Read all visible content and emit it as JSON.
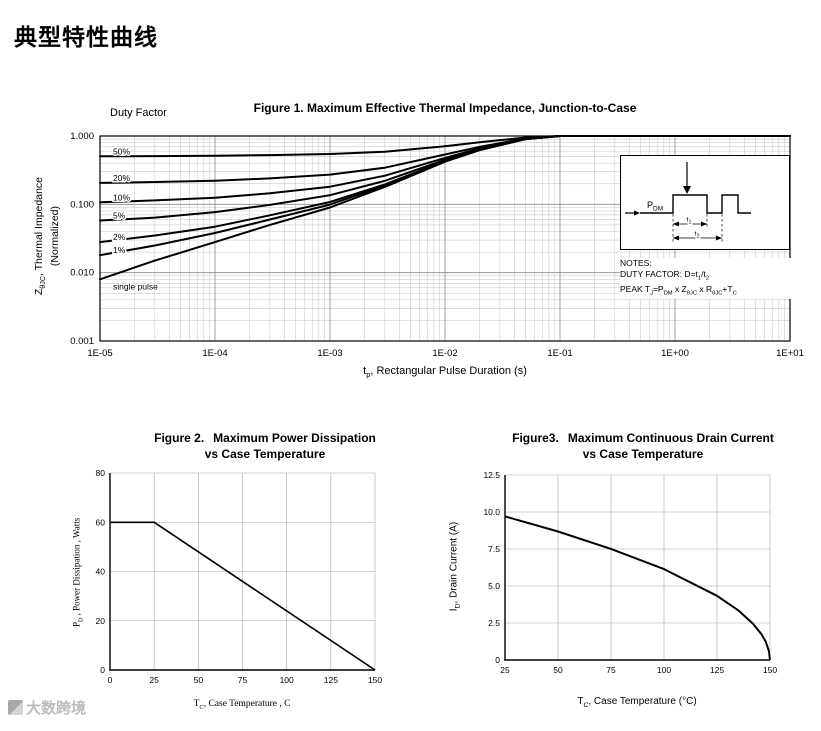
{
  "page": {
    "title": "典型特性曲线",
    "watermark": "大数跨境"
  },
  "chart_data": [
    {
      "type": "line",
      "title": "Figure 1. Maximum Effective Thermal Impedance, Junction-to-Case",
      "duty_factor_label": "Duty Factor",
      "xscale": "log",
      "yscale": "log",
      "xlim": [
        1e-05,
        10
      ],
      "ylim": [
        0.001,
        1.0
      ],
      "grid": true,
      "xlabel_parts": [
        "t",
        "p",
        ", Rectangular Pulse Duration (s)"
      ],
      "ylabel_parts": [
        "Z",
        "θJC",
        ", Thermal Impedance"
      ],
      "ylabel_line2": "(Normalized)",
      "x_tick_labels": [
        "1E-05",
        "1E-04",
        "1E-03",
        "1E-02",
        "1E-01",
        "1E+00",
        "1E+01"
      ],
      "y_tick_labels": [
        "1.000",
        "0.100",
        "0.010",
        "0.001"
      ],
      "x": [
        1e-05,
        3e-05,
        0.0001,
        0.0003,
        0.001,
        0.003,
        0.01,
        0.02,
        0.05,
        0.1,
        1,
        10
      ],
      "series": [
        {
          "label": "50%",
          "duty": 0.5,
          "y": [
            0.504,
            0.508,
            0.514,
            0.525,
            0.545,
            0.59,
            0.71,
            0.81,
            0.95,
            1,
            1,
            1
          ]
        },
        {
          "label": "20%",
          "duty": 0.2,
          "y": [
            0.206,
            0.212,
            0.222,
            0.24,
            0.272,
            0.344,
            0.536,
            0.696,
            0.92,
            1,
            1,
            1
          ]
        },
        {
          "label": "10%",
          "duty": 0.1,
          "y": [
            0.107,
            0.114,
            0.125,
            0.145,
            0.181,
            0.262,
            0.478,
            0.658,
            0.91,
            1,
            1,
            1
          ]
        },
        {
          "label": "5%",
          "duty": 0.05,
          "y": [
            0.058,
            0.064,
            0.077,
            0.098,
            0.136,
            0.221,
            0.449,
            0.639,
            0.905,
            1,
            1,
            1
          ]
        },
        {
          "label": "2%",
          "duty": 0.02,
          "y": [
            0.028,
            0.035,
            0.047,
            0.069,
            0.108,
            0.196,
            0.432,
            0.628,
            0.902,
            1,
            1,
            1
          ]
        },
        {
          "label": "1%",
          "duty": 0.01,
          "y": [
            0.018,
            0.025,
            0.038,
            0.06,
            0.099,
            0.188,
            0.426,
            0.624,
            0.901,
            1,
            1,
            1
          ]
        },
        {
          "label": "single pulse",
          "y": [
            0.008,
            0.015,
            0.028,
            0.05,
            0.09,
            0.18,
            0.42,
            0.62,
            0.9,
            1,
            1,
            1
          ]
        }
      ],
      "notes_title": "NOTES:",
      "note2_parts": [
        "DUTY FACTOR: D=t",
        "1",
        "/t",
        "2"
      ],
      "note3_parts": [
        "PEAK T",
        "J",
        "=P",
        "DM",
        " x Z",
        "θJC",
        " x R",
        "θJC",
        "+T",
        "C"
      ],
      "inset": {
        "p": "P",
        "p_sub": "DM",
        "t": "t",
        "t1_sub": "1",
        "t2_sub": "2"
      }
    },
    {
      "type": "line",
      "fig_label": "Figure 2.",
      "title_line1": "Maximum Power Dissipation",
      "title_line2": "vs Case Temperature",
      "xlabel_parts": [
        "T",
        "C",
        ", Case Temperature , C"
      ],
      "ylabel_parts": [
        "P",
        "D",
        " , Power Dissipation ,  Watts"
      ],
      "xlim": [
        0,
        150
      ],
      "ylim": [
        0,
        80
      ],
      "grid": true,
      "xticks": [
        "0",
        "25",
        "50",
        "75",
        "100",
        "125",
        "150"
      ],
      "yticks": [
        "0",
        "20",
        "40",
        "60",
        "80"
      ],
      "x": [
        0,
        25,
        150
      ],
      "y": [
        60,
        60,
        0
      ]
    },
    {
      "type": "line",
      "fig_label": "Figure3.",
      "title_line1": "Maximum Continuous Drain Current",
      "title_line2": "vs Case Temperature",
      "xlabel_parts": [
        "T",
        "C",
        ", Case Temperature (°C)"
      ],
      "ylabel_parts": [
        "I",
        "D",
        ", Drain Current (A)"
      ],
      "xlim": [
        25,
        150
      ],
      "ylim": [
        0,
        12.5
      ],
      "grid": true,
      "xticks": [
        "25",
        "50",
        "75",
        "100",
        "125",
        "150"
      ],
      "yticks": [
        "0",
        "2.5",
        "5.0",
        "7.5",
        "10.0",
        "12.5"
      ],
      "x": [
        25,
        50,
        75,
        100,
        125,
        135,
        142,
        146,
        148,
        149.5,
        150
      ],
      "y": [
        9.7,
        8.68,
        7.51,
        6.14,
        4.34,
        3.36,
        2.45,
        1.74,
        1.23,
        0.61,
        0
      ]
    }
  ]
}
